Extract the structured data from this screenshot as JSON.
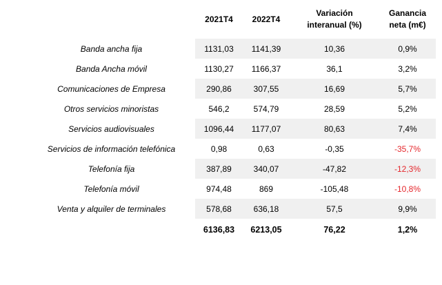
{
  "chart_data": {
    "type": "table",
    "headers": [
      "2021T4",
      "2022T4",
      "Variación\ninteranual (%)",
      "Ganancia\nneta (m€)"
    ],
    "column_names": [
      "2021T4",
      "2022T4",
      "Variación interanual (%)",
      "Ganancia neta (m€)"
    ],
    "rows": [
      {
        "label": "Banda ancha fija",
        "values": [
          "1131,03",
          "1141,39",
          "10,36",
          "0,9%"
        ]
      },
      {
        "label": "Banda Ancha móvil",
        "values": [
          "1130,27",
          "1166,37",
          "36,1",
          "3,2%"
        ]
      },
      {
        "label": "Comunicaciones de Empresa",
        "values": [
          "290,86",
          "307,55",
          "16,69",
          "5,7%"
        ]
      },
      {
        "label": "Otros servicios minoristas",
        "values": [
          "546,2",
          "574,79",
          "28,59",
          "5,2%"
        ]
      },
      {
        "label": "Servicios audiovisuales",
        "values": [
          "1096,44",
          "1177,07",
          "80,63",
          "7,4%"
        ]
      },
      {
        "label": "Servicios de información telefónica",
        "values": [
          "0,98",
          "0,63",
          "-0,35",
          "-35,7%"
        ]
      },
      {
        "label": "Telefonía fija",
        "values": [
          "387,89",
          "340,07",
          "-47,82",
          "-12,3%"
        ]
      },
      {
        "label": "Telefonía móvil",
        "values": [
          "974,48",
          "869",
          "-105,48",
          "-10,8%"
        ]
      },
      {
        "label": "Venta y alquiler de terminales",
        "values": [
          "578,68",
          "636,18",
          "57,5",
          "9,9%"
        ]
      }
    ],
    "total": {
      "label": "",
      "values": [
        "6136,83",
        "6213,05",
        "76,22",
        "1,2%"
      ]
    },
    "layout": {
      "stripe_rows": "odd rows (1st, 3rd, 5th, 7th, 9th) shaded on numeric columns only",
      "legend": "negative Ganancia percentages shown in red"
    },
    "colors": {
      "negative_pct": "#e5262b",
      "stripe": "#f0f0f0",
      "text": "#000000"
    }
  }
}
